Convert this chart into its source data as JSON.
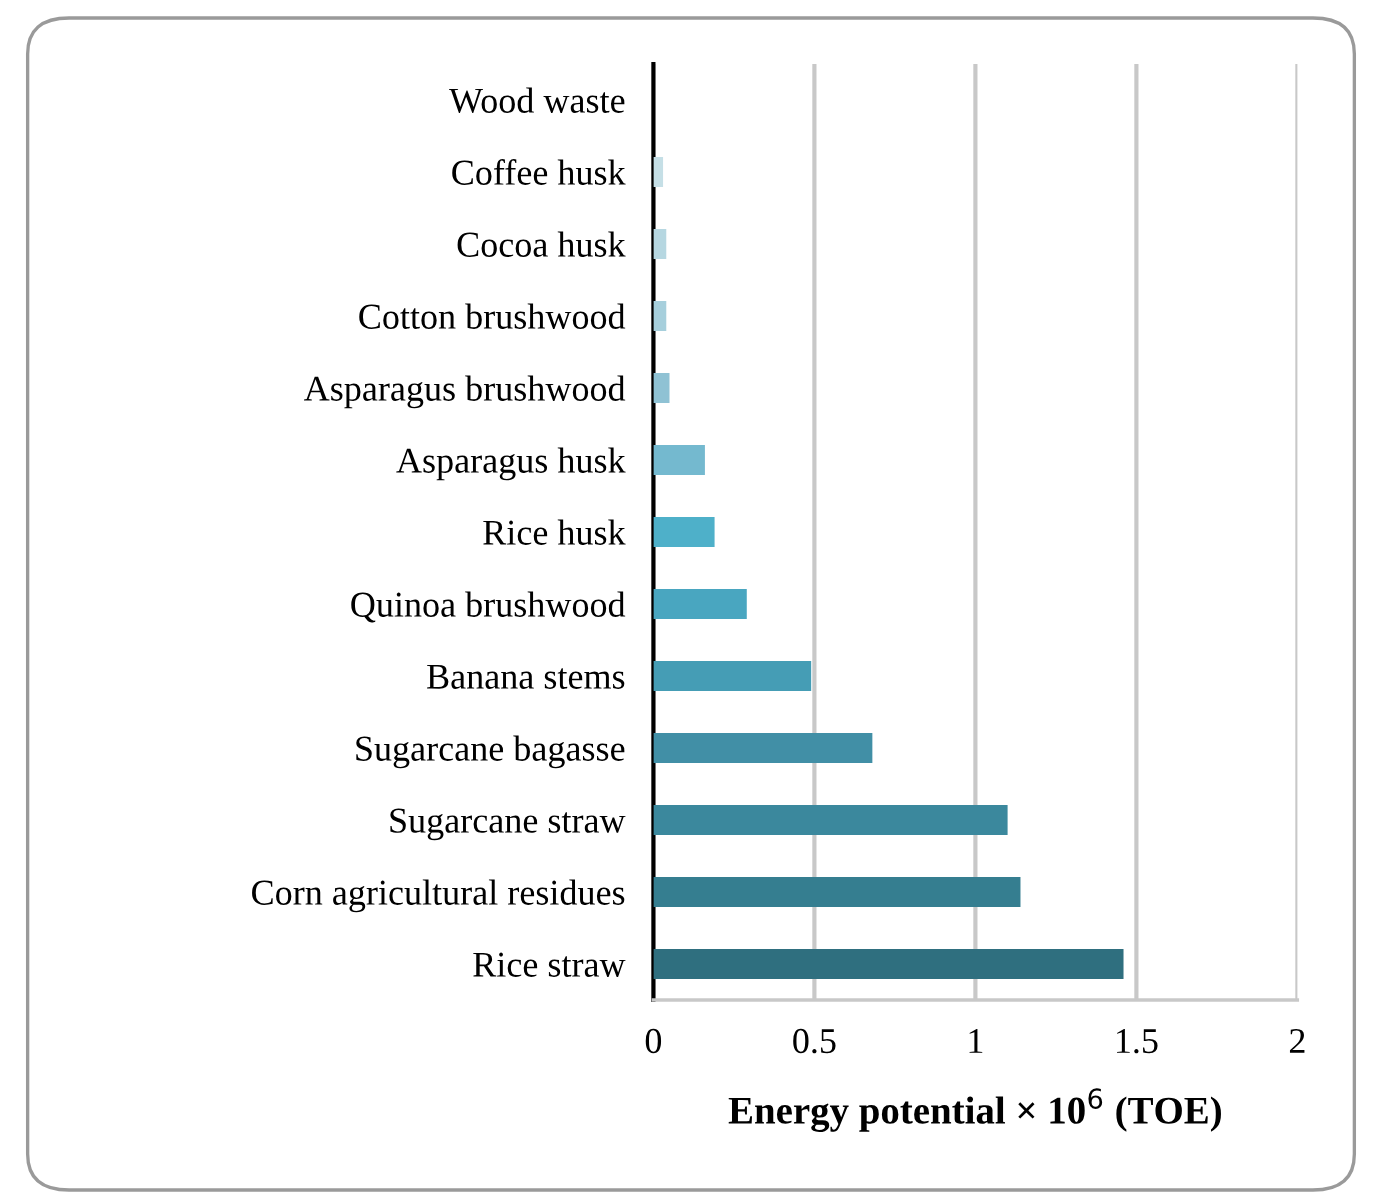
{
  "chart_data": {
    "type": "bar",
    "orientation": "horizontal",
    "categories": [
      "Wood waste",
      "Coffee husk",
      "Cocoa husk",
      "Cotton brushwood",
      "Asparagus brushwood",
      "Asparagus husk",
      "Rice husk",
      "Quinoa brushwood",
      "Banana stems",
      "Sugarcane bagasse",
      "Sugarcane straw",
      "Corn agricultural residues",
      "Rice straw"
    ],
    "values": [
      0,
      0.03,
      0.04,
      0.04,
      0.05,
      0.16,
      0.19,
      0.29,
      0.49,
      0.68,
      1.1,
      1.14,
      1.46
    ],
    "colors": [
      "#d5e8ee",
      "#c5dfe6",
      "#b6d7e1",
      "#a6cfdc",
      "#8fc2d4",
      "#74b9cf",
      "#4eb0c9",
      "#49a6c0",
      "#459db5",
      "#418fa6",
      "#3b889d",
      "#357e90",
      "#2f6f7f"
    ],
    "xlabel": "Energy potential × 10$^{6}$ (TOE)",
    "xlim": [
      0,
      2
    ],
    "xticks": [
      0,
      0.5,
      1,
      1.5,
      2
    ],
    "grid": "x"
  }
}
